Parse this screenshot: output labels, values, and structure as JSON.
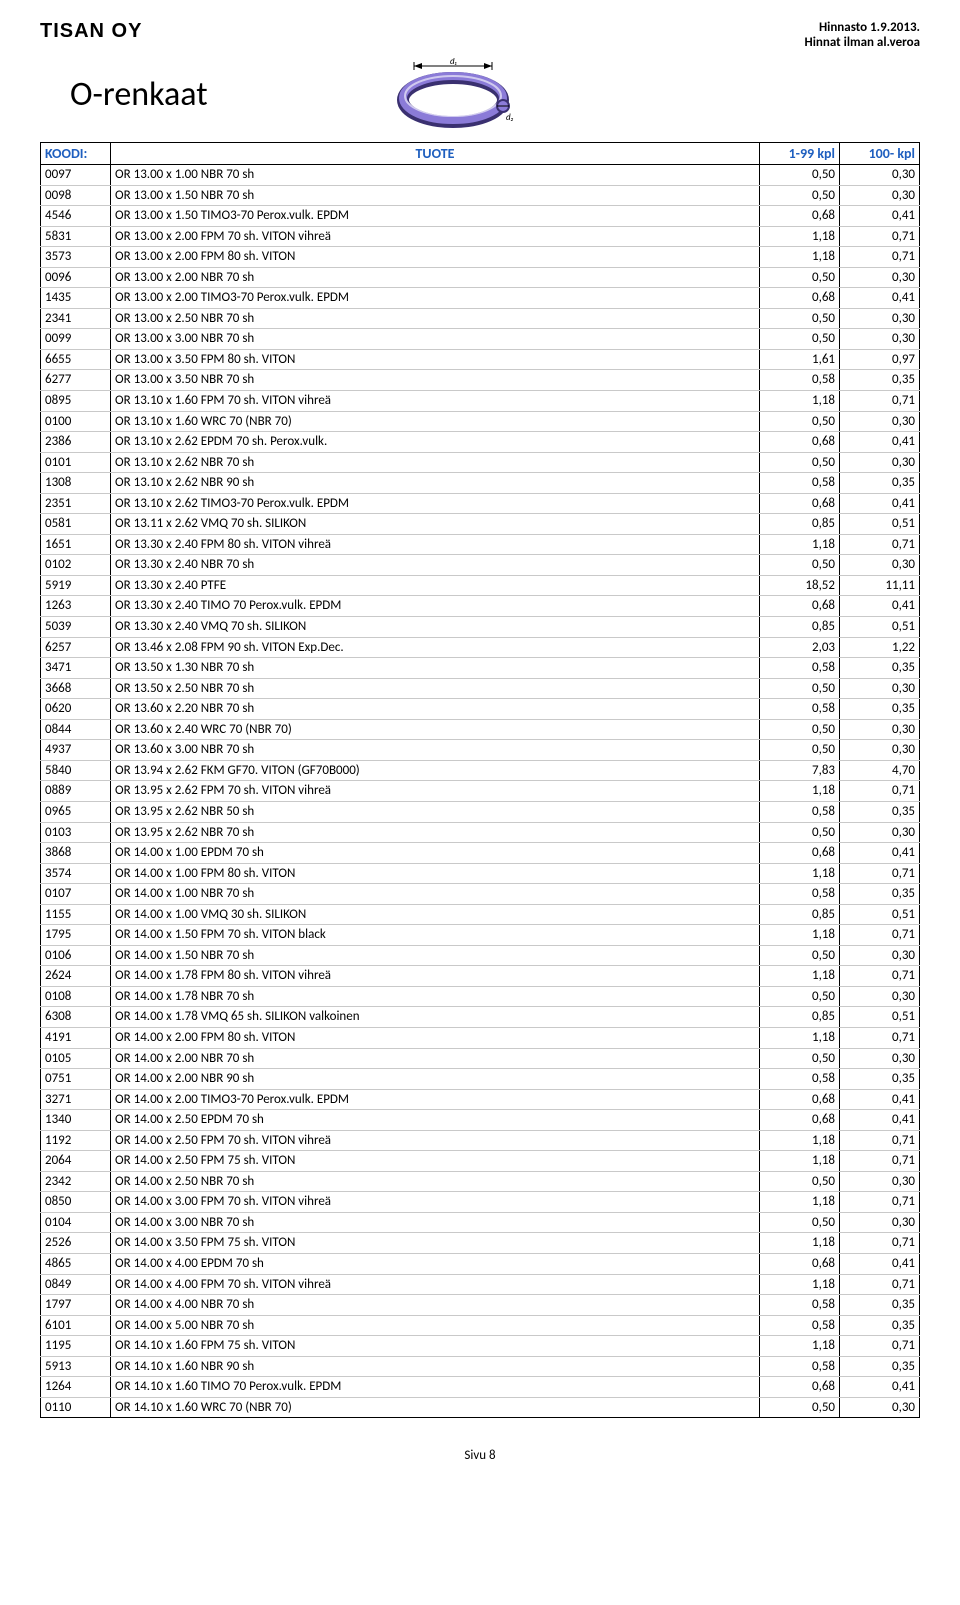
{
  "company": "TISAN OY",
  "header_right_line1": "Hinnasto 1.9.2013.",
  "header_right_line2": "Hinnat ilman al.veroa",
  "title": "O-renkaat",
  "table": {
    "headers": {
      "koodi": "KOODI:",
      "tuote": "TUOTE",
      "p1": "1-99 kpl",
      "p2": "100- kpl"
    },
    "rows": [
      [
        "0097",
        "OR  13.00 x 1.00 NBR 70 sh",
        "0,50",
        "0,30"
      ],
      [
        "0098",
        "OR  13.00 x 1.50 NBR 70 sh",
        "0,50",
        "0,30"
      ],
      [
        "4546",
        "OR  13.00 x 1.50 TIMO3-70 Perox.vulk. EPDM",
        "0,68",
        "0,41"
      ],
      [
        "5831",
        "OR  13.00 x 2.00 FPM 70 sh. VITON vihreä",
        "1,18",
        "0,71"
      ],
      [
        "3573",
        "OR  13.00 x 2.00 FPM 80 sh. VITON",
        "1,18",
        "0,71"
      ],
      [
        "0096",
        "OR  13.00 x 2.00 NBR 70 sh",
        "0,50",
        "0,30"
      ],
      [
        "1435",
        "OR  13.00 x 2.00 TIMO3-70 Perox.vulk. EPDM",
        "0,68",
        "0,41"
      ],
      [
        "2341",
        "OR  13.00 x 2.50 NBR 70 sh",
        "0,50",
        "0,30"
      ],
      [
        "0099",
        "OR  13.00 x 3.00 NBR 70 sh",
        "0,50",
        "0,30"
      ],
      [
        "6655",
        "OR  13.00 x 3.50 FPM 80 sh. VITON",
        "1,61",
        "0,97"
      ],
      [
        "6277",
        "OR  13.00 x 3.50 NBR 70 sh",
        "0,58",
        "0,35"
      ],
      [
        "0895",
        "OR  13.10 x 1.60 FPM 70 sh. VITON vihreä",
        "1,18",
        "0,71"
      ],
      [
        "0100",
        "OR  13.10 x 1.60 WRC 70 (NBR 70)",
        "0,50",
        "0,30"
      ],
      [
        "2386",
        "OR  13.10 x 2.62 EPDM 70 sh. Perox.vulk.",
        "0,68",
        "0,41"
      ],
      [
        "0101",
        "OR  13.10 x 2.62 NBR 70 sh",
        "0,50",
        "0,30"
      ],
      [
        "1308",
        "OR  13.10 x 2.62 NBR 90 sh",
        "0,58",
        "0,35"
      ],
      [
        "2351",
        "OR  13.10 x 2.62 TIMO3-70 Perox.vulk. EPDM",
        "0,68",
        "0,41"
      ],
      [
        "0581",
        "OR  13.11 x 2.62 VMQ 70 sh. SILIKON",
        "0,85",
        "0,51"
      ],
      [
        "1651",
        "OR  13.30 x 2.40 FPM 80 sh. VITON vihreä",
        "1,18",
        "0,71"
      ],
      [
        "0102",
        "OR  13.30 x 2.40 NBR 70 sh",
        "0,50",
        "0,30"
      ],
      [
        "5919",
        "OR  13.30 x 2.40 PTFE",
        "18,52",
        "11,11"
      ],
      [
        "1263",
        "OR  13.30 x 2.40 TIMO 70  Perox.vulk. EPDM",
        "0,68",
        "0,41"
      ],
      [
        "5039",
        "OR  13.30 x 2.40 VMQ 70 sh. SILIKON",
        "0,85",
        "0,51"
      ],
      [
        "6257",
        "OR  13.46 x 2.08 FPM 90 sh. VITON Exp.Dec.",
        "2,03",
        "1,22"
      ],
      [
        "3471",
        "OR  13.50 x 1.30 NBR 70 sh",
        "0,58",
        "0,35"
      ],
      [
        "3668",
        "OR  13.50 x 2.50 NBR 70 sh",
        "0,50",
        "0,30"
      ],
      [
        "0620",
        "OR  13.60 x 2.20 NBR 70 sh",
        "0,58",
        "0,35"
      ],
      [
        "0844",
        "OR  13.60 x 2.40 WRC 70 (NBR 70)",
        "0,50",
        "0,30"
      ],
      [
        "4937",
        "OR  13.60 x 3.00 NBR 70 sh",
        "0,50",
        "0,30"
      ],
      [
        "5840",
        "OR  13.94 x 2.62 FKM GF70. VITON (GF70B000)",
        "7,83",
        "4,70"
      ],
      [
        "0889",
        "OR  13.95 x 2.62 FPM 70 sh. VITON vihreä",
        "1,18",
        "0,71"
      ],
      [
        "0965",
        "OR  13.95 x 2.62 NBR 50 sh",
        "0,58",
        "0,35"
      ],
      [
        "0103",
        "OR  13.95 x 2.62 NBR 70 sh",
        "0,50",
        "0,30"
      ],
      [
        "3868",
        "OR  14.00 x 1.00 EPDM 70 sh",
        "0,68",
        "0,41"
      ],
      [
        "3574",
        "OR  14.00 x 1.00 FPM 80 sh. VITON",
        "1,18",
        "0,71"
      ],
      [
        "0107",
        "OR  14.00 x 1.00 NBR 70 sh",
        "0,58",
        "0,35"
      ],
      [
        "1155",
        "OR  14.00 x 1.00 VMQ 30 sh. SILIKON",
        "0,85",
        "0,51"
      ],
      [
        "1795",
        "OR  14.00 x 1.50 FPM 70 sh. VITON black",
        "1,18",
        "0,71"
      ],
      [
        "0106",
        "OR  14.00 x 1.50 NBR 70 sh",
        "0,50",
        "0,30"
      ],
      [
        "2624",
        "OR  14.00 x 1.78 FPM 80 sh. VITON vihreä",
        "1,18",
        "0,71"
      ],
      [
        "0108",
        "OR  14.00 x 1.78 NBR 70 sh",
        "0,50",
        "0,30"
      ],
      [
        "6308",
        "OR  14.00 x 1.78 VMQ 65 sh. SILIKON valkoinen",
        "0,85",
        "0,51"
      ],
      [
        "4191",
        "OR  14.00 x 2.00 FPM 80 sh. VITON",
        "1,18",
        "0,71"
      ],
      [
        "0105",
        "OR  14.00 x 2.00 NBR 70 sh",
        "0,50",
        "0,30"
      ],
      [
        "0751",
        "OR  14.00 x 2.00 NBR 90 sh",
        "0,58",
        "0,35"
      ],
      [
        "3271",
        "OR  14.00 x 2.00 TIMO3-70 Perox.vulk. EPDM",
        "0,68",
        "0,41"
      ],
      [
        "1340",
        "OR  14.00 x 2.50 EPDM 70 sh",
        "0,68",
        "0,41"
      ],
      [
        "1192",
        "OR  14.00 x 2.50 FPM 70 sh. VITON vihreä",
        "1,18",
        "0,71"
      ],
      [
        "2064",
        "OR  14.00 x 2.50 FPM 75 sh. VITON",
        "1,18",
        "0,71"
      ],
      [
        "2342",
        "OR  14.00 x 2.50 NBR 70 sh",
        "0,50",
        "0,30"
      ],
      [
        "0850",
        "OR  14.00 x 3.00 FPM 70 sh. VITON vihreä",
        "1,18",
        "0,71"
      ],
      [
        "0104",
        "OR  14.00 x 3.00 NBR 70 sh",
        "0,50",
        "0,30"
      ],
      [
        "2526",
        "OR  14.00 x 3.50 FPM 75 sh. VITON",
        "1,18",
        "0,71"
      ],
      [
        "4865",
        "OR  14.00 x 4.00 EPDM 70 sh",
        "0,68",
        "0,41"
      ],
      [
        "0849",
        "OR  14.00 x 4.00 FPM 70 sh. VITON vihreä",
        "1,18",
        "0,71"
      ],
      [
        "1797",
        "OR  14.00 x 4.00 NBR 70 sh",
        "0,58",
        "0,35"
      ],
      [
        "6101",
        "OR  14.00 x 5.00 NBR 70 sh",
        "0,58",
        "0,35"
      ],
      [
        "1195",
        "OR  14.10 x 1.60 FPM 75 sh. VITON",
        "1,18",
        "0,71"
      ],
      [
        "5913",
        "OR  14.10 x 1.60 NBR 90 sh",
        "0,58",
        "0,35"
      ],
      [
        "1264",
        "OR  14.10 x 1.60 TIMO 70 Perox.vulk. EPDM",
        "0,68",
        "0,41"
      ],
      [
        "0110",
        "OR  14.10 x 1.60 WRC 70 (NBR 70)",
        "0,50",
        "0,30"
      ]
    ]
  },
  "footer": "Sivu 8",
  "colors": {
    "header_text": "#1f5fbf",
    "border": "#000000",
    "row_border": "#c9c9c9",
    "oring_purple": "#6b5bb5",
    "oring_dark": "#3a3070"
  }
}
